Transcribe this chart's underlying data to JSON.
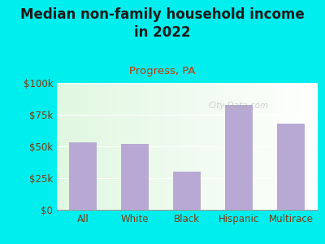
{
  "title": "Median non-family household income\nin 2022",
  "subtitle": "Progress, PA",
  "categories": [
    "All",
    "White",
    "Black",
    "Hispanic",
    "Multirace"
  ],
  "values": [
    53000,
    52000,
    30000,
    83000,
    68000
  ],
  "bar_color": "#b8a9d4",
  "title_fontsize": 12,
  "subtitle_color": "#cc3300",
  "title_color": "#1a1a1a",
  "background_color": "#00eeee",
  "ylim": [
    0,
    100000
  ],
  "yticks": [
    0,
    25000,
    50000,
    75000,
    100000
  ],
  "ytick_labels": [
    "$0",
    "$25k",
    "$50k",
    "$75k",
    "$100k"
  ],
  "tick_color": "#7a3b10",
  "watermark": "City-Data.com",
  "watermark_color": "#aaaaaa"
}
